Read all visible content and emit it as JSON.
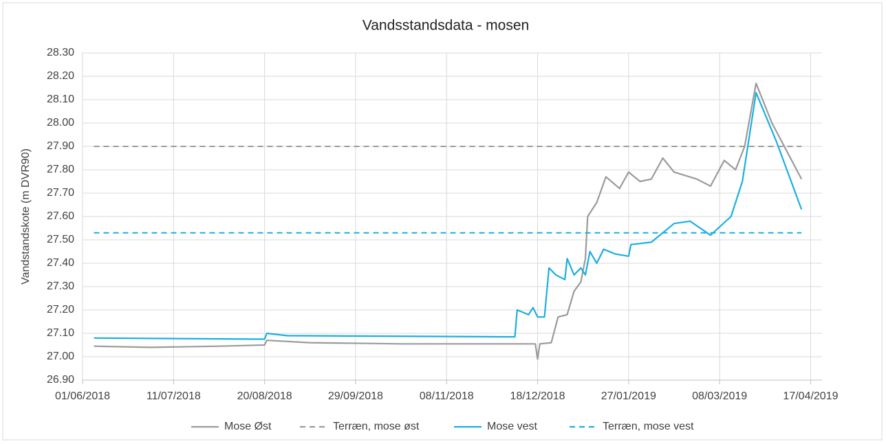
{
  "chart_data": {
    "type": "line",
    "title": "Vandsstandsdata - mosen",
    "ylabel": "Vandstandskote (m DVR90)",
    "xlim": [
      "01/06/2018",
      "22/04/2019"
    ],
    "xticks": [
      "01/06/2018",
      "11/07/2018",
      "20/08/2018",
      "29/09/2018",
      "08/11/2018",
      "18/12/2018",
      "27/01/2019",
      "08/03/2019",
      "17/04/2019"
    ],
    "ylim": [
      26.9,
      28.3
    ],
    "yticks": [
      {
        "value": 26.9,
        "label": "26.90"
      },
      {
        "value": 27.0,
        "label": "27.00"
      },
      {
        "value": 27.1,
        "label": "27.10"
      },
      {
        "value": 27.2,
        "label": "27.20"
      },
      {
        "value": 27.3,
        "label": "27.30"
      },
      {
        "value": 27.4,
        "label": "27.40"
      },
      {
        "value": 27.5,
        "label": "27.50"
      },
      {
        "value": 27.6,
        "label": "27.60"
      },
      {
        "value": 27.7,
        "label": "27.70"
      },
      {
        "value": 27.8,
        "label": "27.80"
      },
      {
        "value": 27.9,
        "label": "27.90"
      },
      {
        "value": 28.0,
        "label": "28.00"
      },
      {
        "value": 28.1,
        "label": "28.10"
      },
      {
        "value": 28.2,
        "label": "28.20"
      },
      {
        "value": 28.3,
        "label": "28.30"
      }
    ],
    "grid": true,
    "legend": "bottom",
    "series": [
      {
        "name": "Mose Øst",
        "color": "#9a9a9a",
        "dashed": false,
        "x": [
          "06/06/2018",
          "01/07/2018",
          "31/07/2018",
          "20/08/2018",
          "21/08/2018",
          "09/09/2018",
          "19/10/2018",
          "08/12/2018",
          "17/12/2018",
          "18/12/2018",
          "19/12/2018",
          "24/12/2018",
          "27/12/2018",
          "31/12/2018",
          "03/01/2019",
          "06/01/2019",
          "08/01/2019",
          "09/01/2019",
          "13/01/2019",
          "17/01/2019",
          "23/01/2019",
          "27/01/2019",
          "01/02/2019",
          "06/02/2019",
          "11/02/2019",
          "16/02/2019",
          "26/02/2019",
          "04/03/2019",
          "10/03/2019",
          "15/03/2019",
          "19/03/2019",
          "24/03/2019",
          "31/03/2019",
          "13/04/2019"
        ],
        "values": [
          27.045,
          27.04,
          27.045,
          27.05,
          27.07,
          27.06,
          27.055,
          27.055,
          27.055,
          26.99,
          27.055,
          27.06,
          27.17,
          27.18,
          27.28,
          27.32,
          27.42,
          27.6,
          27.66,
          27.77,
          27.72,
          27.79,
          27.75,
          27.76,
          27.85,
          27.79,
          27.76,
          27.73,
          27.84,
          27.8,
          27.9,
          28.17,
          28.0,
          27.76
        ]
      },
      {
        "name": "Terræn, mose øst",
        "color": "#9a9a9a",
        "dashed": true,
        "x": [
          "06/06/2018",
          "13/04/2019"
        ],
        "values": [
          27.9,
          27.9
        ]
      },
      {
        "name": "Mose vest",
        "color": "#1aaee0",
        "dashed": false,
        "x": [
          "06/06/2018",
          "20/08/2018",
          "21/08/2018",
          "30/08/2018",
          "08/12/2018",
          "09/12/2018",
          "14/12/2018",
          "16/12/2018",
          "18/12/2018",
          "21/12/2018",
          "23/12/2018",
          "26/12/2018",
          "30/12/2018",
          "31/12/2018",
          "03/01/2019",
          "06/01/2019",
          "08/01/2019",
          "10/01/2019",
          "13/01/2019",
          "16/01/2019",
          "21/01/2019",
          "27/01/2019",
          "28/01/2019",
          "06/02/2019",
          "16/02/2019",
          "23/02/2019",
          "04/03/2019",
          "13/03/2019",
          "18/03/2019",
          "24/03/2019",
          "02/04/2019",
          "13/04/2019"
        ],
        "values": [
          27.08,
          27.075,
          27.1,
          27.09,
          27.085,
          27.2,
          27.18,
          27.21,
          27.17,
          27.17,
          27.38,
          27.35,
          27.33,
          27.42,
          27.35,
          27.38,
          27.35,
          27.45,
          27.4,
          27.46,
          27.44,
          27.43,
          27.48,
          27.49,
          27.57,
          27.58,
          27.52,
          27.6,
          27.75,
          28.13,
          27.92,
          27.63
        ]
      },
      {
        "name": "Terræn, mose vest",
        "color": "#1aaee0",
        "dashed": true,
        "x": [
          "06/06/2018",
          "13/04/2019"
        ],
        "values": [
          27.53,
          27.53
        ]
      }
    ]
  }
}
